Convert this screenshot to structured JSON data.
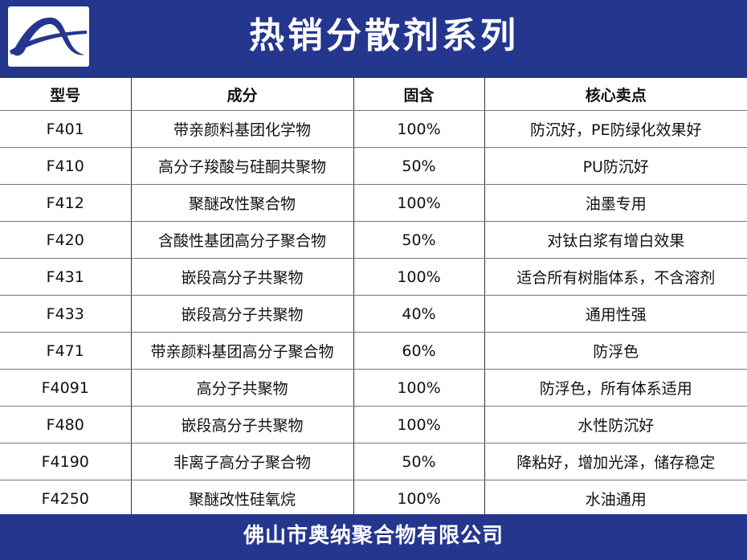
{
  "header": {
    "title": "热销分散剂系列",
    "logo": "company-logo",
    "color": "#25368f"
  },
  "table": {
    "columns": [
      "型号",
      "成分",
      "固含",
      "核心卖点"
    ],
    "rows": [
      [
        "F401",
        "带亲颜料基团化学物",
        "100%",
        "防沉好，PE防绿化效果好"
      ],
      [
        "F410",
        "高分子羧酸与硅酮共聚物",
        "50%",
        "PU防沉好"
      ],
      [
        "F412",
        "聚醚改性聚合物",
        "100%",
        "油墨专用"
      ],
      [
        "F420",
        "含酸性基团高分子聚合物",
        "50%",
        "对钛白浆有增白效果"
      ],
      [
        "F431",
        "嵌段高分子共聚物",
        "100%",
        "适合所有树脂体系，不含溶剂"
      ],
      [
        "F433",
        "嵌段高分子共聚物",
        "40%",
        "通用性强"
      ],
      [
        "F471",
        "带亲颜料基团高分子聚合物",
        "60%",
        "防浮色"
      ],
      [
        "F4091",
        "高分子共聚物",
        "100%",
        "防浮色，所有体系适用"
      ],
      [
        "F480",
        "嵌段高分子共聚物",
        "100%",
        "水性防沉好"
      ],
      [
        "F4190",
        "非离子高分子聚合物",
        "50%",
        "降粘好，增加光泽，储存稳定"
      ],
      [
        "F4250",
        "聚醚改性硅氧烷",
        "100%",
        "水油通用"
      ]
    ]
  },
  "footer": {
    "company": "佛山市奥纳聚合物有限公司"
  }
}
